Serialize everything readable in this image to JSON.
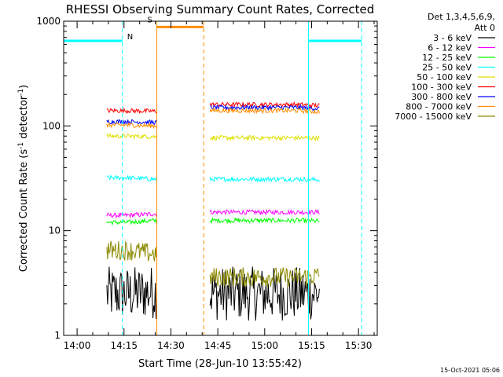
{
  "chart_data": {
    "type": "line",
    "title": "RHESSI Observing Summary Count Rates, Corrected",
    "xlabel": "Start Time (28-Jun-10 13:55:42)",
    "ylabel": "Corrected Count Rate (s⁻¹ detector⁻¹)",
    "ylabel_main": "Corrected Count Rate (s",
    "ylabel_sup1": "-1",
    "ylabel_mid": " detector",
    "ylabel_sup2": "-1",
    "ylabel_end": ")",
    "yscale": "log",
    "ylim": [
      1,
      1000
    ],
    "xlim": [
      "13:55:42",
      "15:36:00"
    ],
    "x_ticks": [
      "14:00",
      "14:15",
      "14:30",
      "14:45",
      "15:00",
      "15:15",
      "15:30"
    ],
    "y_ticks": [
      "1",
      "10",
      "100",
      "1000"
    ],
    "grid": false,
    "legend_position": "right",
    "legend_header": [
      "Det 1,3,4,5,6,9,",
      "Att 0"
    ],
    "footer_date": "15-Oct-2021 05:06",
    "series": [
      {
        "name": "3 - 6 keV",
        "color": "#000000",
        "segments": [
          {
            "start": "14:09:30",
            "end": "14:25:30",
            "points": [
              [
                14.16,
                2.5
              ],
              [
                14.25,
                2.6
              ],
              [
                14.33,
                2.5
              ],
              [
                14.4,
                2.4
              ]
            ],
            "noise": "high"
          },
          {
            "start": "14:42:30",
            "end": "15:17:30",
            "points": [
              [
                14.71,
                2.5
              ],
              [
                14.9,
                2.5
              ],
              [
                15.1,
                2.5
              ],
              [
                15.29,
                2.4
              ]
            ],
            "noise": "high"
          }
        ]
      },
      {
        "name": "6 - 12 keV",
        "color": "#ff00ff",
        "segments": [
          {
            "start": "14:09:30",
            "end": "14:25:30",
            "points": [
              [
                14.16,
                14
              ],
              [
                14.25,
                14.5
              ],
              [
                14.33,
                14
              ],
              [
                14.4,
                13.5
              ]
            ]
          },
          {
            "start": "14:42:30",
            "end": "15:17:30",
            "points": [
              [
                14.71,
                15
              ],
              [
                14.9,
                15
              ],
              [
                15.1,
                14.5
              ],
              [
                15.29,
                14
              ]
            ]
          }
        ]
      },
      {
        "name": "12 - 25 keV",
        "color": "#00ff00",
        "segments": [
          {
            "start": "14:09:30",
            "end": "14:25:30",
            "points": [
              [
                14.16,
                12
              ],
              [
                14.25,
                12.5
              ],
              [
                14.33,
                12
              ],
              [
                14.4,
                11.5
              ]
            ]
          },
          {
            "start": "14:42:30",
            "end": "15:17:30",
            "points": [
              [
                14.71,
                12.5
              ],
              [
                14.9,
                12
              ],
              [
                15.1,
                11.5
              ],
              [
                15.29,
                11
              ]
            ]
          }
        ]
      },
      {
        "name": "25 - 50 keV",
        "color": "#00ffff",
        "segments": [
          {
            "start": "14:09:30",
            "end": "14:25:30",
            "points": [
              [
                14.16,
                32
              ],
              [
                14.25,
                31
              ],
              [
                14.33,
                31
              ],
              [
                14.4,
                30
              ]
            ]
          },
          {
            "start": "14:42:30",
            "end": "15:17:30",
            "points": [
              [
                14.71,
                31
              ],
              [
                14.9,
                30
              ],
              [
                15.1,
                28
              ],
              [
                15.29,
                26
              ]
            ]
          }
        ]
      },
      {
        "name": "50 - 100 keV",
        "color": "#e0e000",
        "segments": [
          {
            "start": "14:09:30",
            "end": "14:25:30",
            "points": [
              [
                14.16,
                80
              ],
              [
                14.25,
                79
              ],
              [
                14.33,
                78
              ],
              [
                14.4,
                74
              ]
            ]
          },
          {
            "start": "14:42:30",
            "end": "15:17:30",
            "points": [
              [
                14.71,
                77
              ],
              [
                14.9,
                76
              ],
              [
                15.1,
                73
              ],
              [
                15.29,
                68
              ]
            ]
          }
        ]
      },
      {
        "name": "100 - 300 keV",
        "color": "#ff0000",
        "segments": [
          {
            "start": "14:09:30",
            "end": "14:25:30",
            "points": [
              [
                14.16,
                140
              ],
              [
                14.25,
                138
              ],
              [
                14.33,
                130
              ],
              [
                14.4,
                118
              ]
            ]
          },
          {
            "start": "14:42:30",
            "end": "15:17:30",
            "points": [
              [
                14.71,
                160
              ],
              [
                14.9,
                150
              ],
              [
                15.1,
                135
              ],
              [
                15.29,
                118
              ]
            ]
          }
        ]
      },
      {
        "name": "300 - 800 keV",
        "color": "#0000ff",
        "segments": [
          {
            "start": "14:09:30",
            "end": "14:25:30",
            "points": [
              [
                14.16,
                110
              ],
              [
                14.25,
                108
              ],
              [
                14.33,
                100
              ],
              [
                14.4,
                92
              ]
            ]
          },
          {
            "start": "14:42:30",
            "end": "15:17:30",
            "points": [
              [
                14.71,
                150
              ],
              [
                14.9,
                140
              ],
              [
                15.1,
                120
              ],
              [
                15.29,
                105
              ]
            ]
          }
        ]
      },
      {
        "name": "800 - 7000 keV",
        "color": "#ff8c00",
        "segments": [
          {
            "start": "14:09:30",
            "end": "14:25:30",
            "points": [
              [
                14.16,
                102
              ],
              [
                14.25,
                100
              ],
              [
                14.33,
                95
              ],
              [
                14.4,
                88
              ]
            ]
          },
          {
            "start": "14:42:30",
            "end": "15:17:30",
            "points": [
              [
                14.71,
                140
              ],
              [
                14.9,
                130
              ],
              [
                15.1,
                110
              ],
              [
                15.29,
                100
              ]
            ]
          }
        ]
      },
      {
        "name": "7000 - 15000 keV",
        "color": "#8b8b00",
        "segments": [
          {
            "start": "14:09:30",
            "end": "14:25:30",
            "points": [
              [
                14.16,
                6.5
              ],
              [
                14.25,
                6
              ],
              [
                14.33,
                5.5
              ],
              [
                14.4,
                4.5
              ]
            ],
            "noise": "medium"
          },
          {
            "start": "14:42:30",
            "end": "15:17:30",
            "points": [
              [
                14.71,
                3.6
              ],
              [
                14.9,
                4
              ],
              [
                15.0,
                6
              ],
              [
                15.1,
                5.5
              ],
              [
                15.29,
                4.5
              ]
            ],
            "noise": "medium"
          }
        ]
      }
    ],
    "annotations": [
      {
        "label": "N",
        "color": "#00ffff",
        "bar": {
          "from": "13:55:42",
          "to": "14:14:30",
          "y": 650
        },
        "dashed_lines": [
          "14:14:30"
        ]
      },
      {
        "label": "",
        "color": "#00ffff",
        "bar": {
          "from": "15:14:00",
          "to": "15:31:00",
          "y": 650
        },
        "dashed_lines": [
          "15:31:00"
        ],
        "solid_lines": [
          "15:14:00"
        ]
      },
      {
        "label": "S",
        "color": "#ff8c00",
        "bar": {
          "from": "14:25:30",
          "to": "14:40:30",
          "y": 880
        },
        "dashed_lines": [
          "14:40:30"
        ],
        "solid_lines": [
          "14:25:30"
        ]
      }
    ]
  }
}
